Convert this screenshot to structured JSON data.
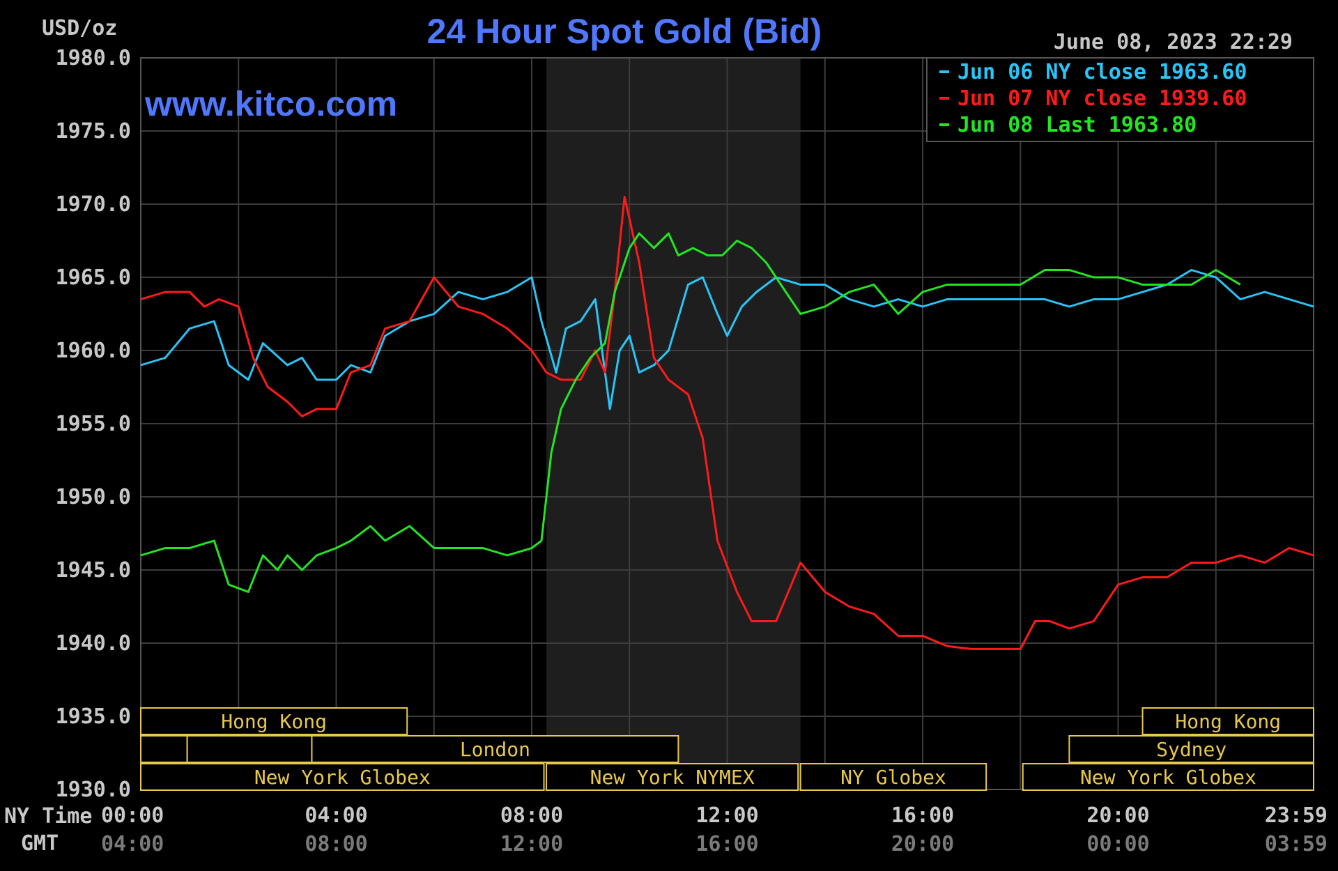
{
  "header": {
    "unit": "USD/oz",
    "title": "24 Hour Spot Gold (Bid)",
    "timestamp": "June 08, 2023 22:29",
    "watermark": "www.kitco.com"
  },
  "colors": {
    "background": "#000000",
    "grid": "#3c3c3c",
    "title": "#4f78ff",
    "watermark": "#4f78ff",
    "jun06": "#29c5f6",
    "jun07": "#ff1a1a",
    "jun08": "#22e622",
    "session": "#e8c84a"
  },
  "axis_labels": {
    "ny_time": "NY Time",
    "gmt": "GMT"
  },
  "chart_data": {
    "type": "line",
    "title": "24 Hour Spot Gold (Bid)",
    "ylabel": "USD/oz",
    "ylim": [
      1930,
      1980
    ],
    "xlim": [
      0,
      24
    ],
    "y_ticks": [
      "1980.0",
      "1975.0",
      "1970.0",
      "1965.0",
      "1960.0",
      "1955.0",
      "1950.0",
      "1945.0",
      "1940.0",
      "1935.0",
      "1930.0"
    ],
    "x_ticks": [
      {
        "ny": "00:00",
        "gmt": "04:00"
      },
      {
        "ny": "04:00",
        "gmt": "08:00"
      },
      {
        "ny": "08:00",
        "gmt": "12:00"
      },
      {
        "ny": "12:00",
        "gmt": "16:00"
      },
      {
        "ny": "16:00",
        "gmt": "20:00"
      },
      {
        "ny": "20:00",
        "gmt": "00:00"
      },
      {
        "ny": "23:59",
        "gmt": "03:59"
      }
    ],
    "grid": true,
    "legend_position": "top-right",
    "shaded_region": [
      8.3,
      13.5
    ],
    "series": [
      {
        "name": "Jun 06 NY close 1963.60",
        "color": "#29c5f6",
        "x": [
          0,
          0.5,
          1,
          1.5,
          1.8,
          2.2,
          2.5,
          3,
          3.3,
          3.6,
          4,
          4.3,
          4.7,
          5,
          5.5,
          6,
          6.5,
          7,
          7.5,
          8,
          8.2,
          8.5,
          8.7,
          9,
          9.3,
          9.6,
          9.8,
          10,
          10.2,
          10.5,
          10.8,
          11.2,
          11.5,
          11.8,
          12,
          12.3,
          12.6,
          13,
          13.5,
          14,
          14.5,
          15,
          15.5,
          16,
          16.5,
          17,
          17.5,
          18,
          18.5,
          19,
          19.5,
          20,
          20.5,
          21,
          21.5,
          22,
          22.5,
          23,
          23.5,
          24
        ],
        "y": [
          1959,
          1959.5,
          1961.5,
          1962,
          1959,
          1958,
          1960.5,
          1959,
          1959.5,
          1958,
          1958,
          1959,
          1958.5,
          1961,
          1962,
          1962.5,
          1964,
          1963.5,
          1964,
          1965,
          1962,
          1958.5,
          1961.5,
          1962,
          1963.5,
          1956,
          1960,
          1961,
          1958.5,
          1959,
          1960,
          1964.5,
          1965,
          1962.5,
          1961,
          1963,
          1964,
          1965,
          1964.5,
          1964.5,
          1963.5,
          1963,
          1963.5,
          1963,
          1963.5,
          1963.5,
          1963.5,
          1963.5,
          1963.5,
          1963,
          1963.5,
          1963.5,
          1964,
          1964.5,
          1965.5,
          1965,
          1963.5,
          1964,
          1963.5,
          1963
        ]
      },
      {
        "name": "Jun 07 NY close 1939.60",
        "color": "#ff1a1a",
        "x": [
          0,
          0.5,
          1,
          1.3,
          1.6,
          2,
          2.3,
          2.6,
          3,
          3.3,
          3.6,
          4,
          4.3,
          4.7,
          5,
          5.5,
          6,
          6.5,
          7,
          7.5,
          8,
          8.3,
          8.6,
          9,
          9.3,
          9.5,
          9.7,
          9.9,
          10.2,
          10.5,
          10.8,
          11.2,
          11.5,
          11.8,
          12.2,
          12.5,
          13,
          13.5,
          14,
          14.5,
          15,
          15.5,
          16,
          16.5,
          17,
          17.5,
          18,
          18.3,
          18.6,
          19,
          19.5,
          20,
          20.5,
          21,
          21.5,
          22,
          22.5,
          23,
          23.5,
          24
        ],
        "y": [
          1963.5,
          1964,
          1964,
          1963,
          1963.5,
          1963,
          1959.5,
          1957.5,
          1956.5,
          1955.5,
          1956,
          1956,
          1958.5,
          1959,
          1961.5,
          1962,
          1965,
          1963,
          1962.5,
          1961.5,
          1960,
          1958.5,
          1958,
          1958,
          1960,
          1958.5,
          1964,
          1970.5,
          1966,
          1959.5,
          1958,
          1957,
          1954,
          1947,
          1943.5,
          1941.5,
          1941.5,
          1945.5,
          1943.5,
          1942.5,
          1942,
          1940.5,
          1940.5,
          1939.8,
          1939.6,
          1939.6,
          1939.6,
          1941.5,
          1941.5,
          1941,
          1941.5,
          1944,
          1944.5,
          1944.5,
          1945.5,
          1945.5,
          1946,
          1945.5,
          1946.5,
          1946
        ]
      },
      {
        "name": "Jun 08 Last 1963.80",
        "color": "#22e622",
        "x": [
          0,
          0.5,
          1,
          1.5,
          1.8,
          2.2,
          2.5,
          2.8,
          3,
          3.3,
          3.6,
          4,
          4.3,
          4.7,
          5,
          5.5,
          6,
          6.5,
          7,
          7.5,
          8,
          8.2,
          8.4,
          8.6,
          8.9,
          9.2,
          9.5,
          9.7,
          10,
          10.2,
          10.5,
          10.8,
          11,
          11.3,
          11.6,
          11.9,
          12.2,
          12.5,
          12.8,
          13.2,
          13.5,
          14,
          14.5,
          15,
          15.5,
          16,
          16.5,
          17,
          17.5,
          18,
          18.5,
          19,
          19.5,
          20,
          20.5,
          21,
          21.5,
          22,
          22.5
        ],
        "y": [
          1946,
          1946.5,
          1946.5,
          1947,
          1944,
          1943.5,
          1946,
          1945,
          1946,
          1945,
          1946,
          1946.5,
          1947,
          1948,
          1947,
          1948,
          1946.5,
          1946.5,
          1946.5,
          1946,
          1946.5,
          1947,
          1953,
          1956,
          1958,
          1959.5,
          1960.5,
          1964,
          1967,
          1968,
          1967,
          1968,
          1966.5,
          1967,
          1966.5,
          1966.5,
          1967.5,
          1967,
          1966,
          1964,
          1962.5,
          1963,
          1964,
          1964.5,
          1962.5,
          1964,
          1964.5,
          1964.5,
          1964.5,
          1964.5,
          1965.5,
          1965.5,
          1965,
          1965,
          1964.5,
          1964.5,
          1964.5,
          1965.5,
          1964.5
        ]
      }
    ]
  },
  "legend": {
    "items": [
      {
        "label": "Jun 06 NY close 1963.60",
        "color": "#29c5f6"
      },
      {
        "label": "Jun 07 NY close 1939.60",
        "color": "#ff1a1a"
      },
      {
        "label": "Jun 08 Last 1963.80",
        "color": "#22e622"
      }
    ]
  },
  "sessions": [
    {
      "label": "Hong Kong",
      "row": 0,
      "start": 0,
      "end": 5.45
    },
    {
      "label": "Hong Kong",
      "row": 0,
      "start": 20.5,
      "end": 24
    },
    {
      "label": "",
      "row": 1,
      "start": 0,
      "end": 0.95
    },
    {
      "label": "",
      "row": 1,
      "start": 0.95,
      "end": 3.5
    },
    {
      "label": "London",
      "row": 1,
      "start": 3.5,
      "end": 11
    },
    {
      "label": "Sydney",
      "row": 1,
      "start": 19,
      "end": 24
    },
    {
      "label": "New York Globex",
      "row": 2,
      "start": 0,
      "end": 8.25
    },
    {
      "label": "New York NYMEX",
      "row": 2,
      "start": 8.3,
      "end": 13.45
    },
    {
      "label": "NY Globex",
      "row": 2,
      "start": 13.5,
      "end": 17.3
    },
    {
      "label": "New York Globex",
      "row": 2,
      "start": 18.05,
      "end": 24
    }
  ]
}
